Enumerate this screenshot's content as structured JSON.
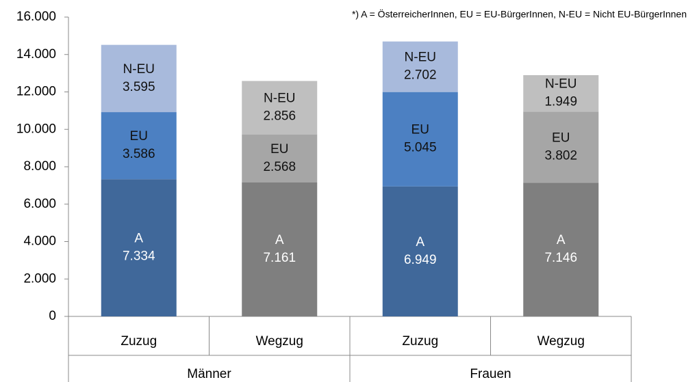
{
  "chart_data": {
    "type": "bar",
    "stacked": true,
    "annotation": "*) A = ÖsterreicherInnen, EU = EU-BürgerInnen, N-EU = Nicht EU-BürgerInnen",
    "groups": [
      {
        "name": "Männer",
        "categories": [
          "Zuzug",
          "Wegzug"
        ]
      },
      {
        "name": "Frauen",
        "categories": [
          "Zuzug",
          "Wegzug"
        ]
      }
    ],
    "series": [
      {
        "name": "A",
        "values": [
          7334,
          7161,
          6949,
          7146
        ],
        "value_labels": [
          "7.334",
          "7.161",
          "6.949",
          "7.146"
        ],
        "colors": [
          "#40689a",
          "#7f7f7f",
          "#40689a",
          "#7f7f7f"
        ]
      },
      {
        "name": "EU",
        "values": [
          3586,
          2568,
          5045,
          3802
        ],
        "value_labels": [
          "3.586",
          "2.568",
          "5.045",
          "3.802"
        ],
        "colors": [
          "#4c80c2",
          "#a6a6a6",
          "#4c80c2",
          "#a6a6a6"
        ]
      },
      {
        "name": "N-EU",
        "values": [
          3595,
          2856,
          2702,
          1949
        ],
        "value_labels": [
          "3.595",
          "2.856",
          "2.702",
          "1.949"
        ],
        "colors": [
          "#a8badc",
          "#bfbfbf",
          "#a8badc",
          "#bfbfbf"
        ]
      }
    ],
    "ylim": [
      0,
      16000
    ],
    "yticks": [
      0,
      {
        "value": 2000,
        "label": "2.000"
      },
      {
        "value": 4000,
        "label": "4.000"
      },
      {
        "value": 6000,
        "label": "6.000"
      },
      {
        "value": 8000,
        "label": "8.000"
      },
      {
        "value": 10000,
        "label": "10.000"
      },
      {
        "value": 12000,
        "label": "12.000"
      },
      {
        "value": 14000,
        "label": "14.000"
      },
      {
        "value": 16000,
        "label": "16.000"
      }
    ]
  }
}
